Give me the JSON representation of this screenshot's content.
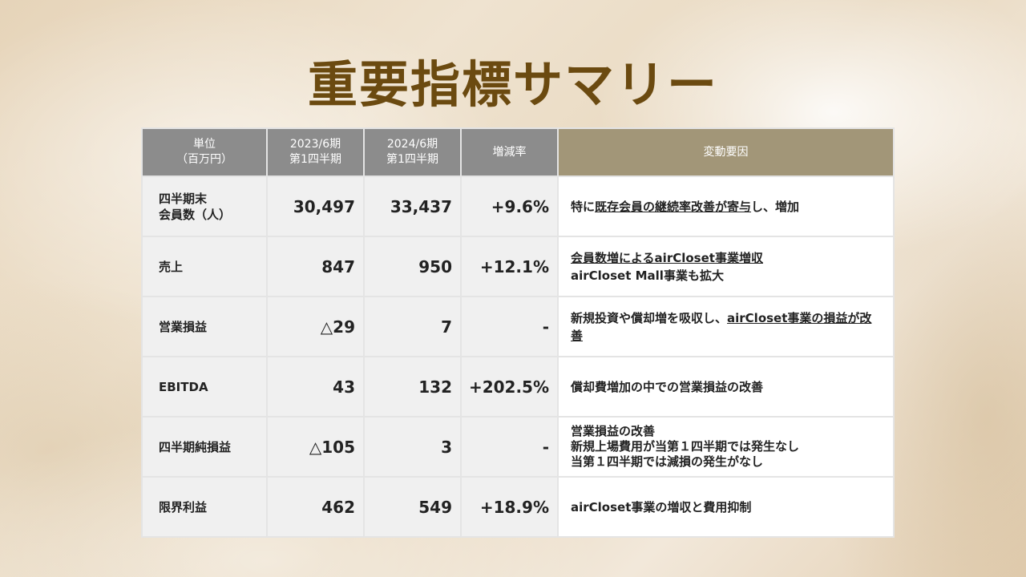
{
  "title": "重要指標サマリー",
  "table": {
    "headers": {
      "unit_line1": "単位",
      "unit_line2": "（百万円）",
      "prev_line1": "2023/6期",
      "prev_line2": "第1四半期",
      "curr_line1": "2024/6期",
      "curr_line2": "第1四半期",
      "change": "増減率",
      "factor": "変動要因"
    },
    "rows": [
      {
        "label_line1": "四半期末",
        "label_line2": "会員数（人）",
        "prev": "30,497",
        "curr": "33,437",
        "change": "+9.6%",
        "factor": {
          "a": "特に",
          "b": "既存会員の継続率改善が寄与",
          "c": "し、増加"
        }
      },
      {
        "label": "売上",
        "prev": "847",
        "curr": "950",
        "change": "+12.1%",
        "factor": {
          "line1": "会員数増によるairCloset事業増収",
          "line2": "airCloset Mall事業も拡大"
        }
      },
      {
        "label": "営業損益",
        "prev": "△29",
        "curr": "7",
        "change": "-",
        "factor": {
          "a": "新規投資や償却増を吸収し、",
          "b": "airCloset事業の損益が改善"
        }
      },
      {
        "label": "EBITDA",
        "prev": "43",
        "curr": "132",
        "change": "+202.5%",
        "factor": {
          "text": "償却費増加の中での営業損益の改善"
        }
      },
      {
        "label": "四半期純損益",
        "prev": "△105",
        "curr": "3",
        "change": "-",
        "factor": {
          "line1": "営業損益の改善",
          "line2": "新規上場費用が当第１四半期では発生なし",
          "line3": "当第１四半期では減損の発生がなし"
        }
      },
      {
        "label": "限界利益",
        "prev": "462",
        "curr": "549",
        "change": "+18.9%",
        "factor": {
          "text": "airCloset事業の増収と費用抑制"
        }
      }
    ]
  },
  "colors": {
    "title": "#6b4a10",
    "header_gray": "#8c8c8c",
    "header_factor": "#a29678",
    "label_cell": "#f0f0f0",
    "factor_cell": "#ffffff"
  }
}
